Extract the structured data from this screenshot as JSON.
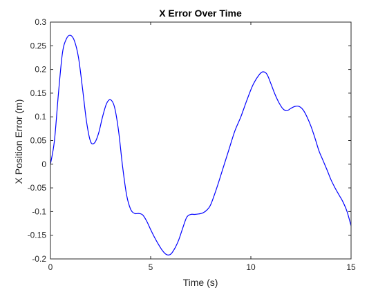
{
  "chart_data": {
    "type": "line",
    "title": "X Error Over Time",
    "xlabel": "Time (s)",
    "ylabel": "X Position Error (m)",
    "xlim": [
      0,
      15
    ],
    "ylim": [
      -0.2,
      0.3
    ],
    "xticks": [
      0,
      5,
      10,
      15
    ],
    "xtick_labels": [
      "0",
      "5",
      "10",
      "15"
    ],
    "yticks": [
      -0.2,
      -0.15,
      -0.1,
      -0.05,
      0,
      0.05,
      0.1,
      0.15,
      0.2,
      0.25,
      0.3
    ],
    "ytick_labels": [
      "-0.2",
      "-0.15",
      "-0.1",
      "-0.05",
      "0",
      "0.05",
      "0.1",
      "0.15",
      "0.2",
      "0.25",
      "0.3"
    ],
    "grid": false,
    "legend": false,
    "series": [
      {
        "color": "#0000ff",
        "x": [
          0,
          0.2,
          0.4,
          0.6,
          0.8,
          1.0,
          1.2,
          1.4,
          1.6,
          1.8,
          2.0,
          2.2,
          2.4,
          2.6,
          2.8,
          3.0,
          3.2,
          3.4,
          3.6,
          3.8,
          4.0,
          4.2,
          4.4,
          4.6,
          4.8,
          5.0,
          5.2,
          5.4,
          5.6,
          5.8,
          6.0,
          6.2,
          6.4,
          6.6,
          6.8,
          7.0,
          7.2,
          7.4,
          7.6,
          7.8,
          8.0,
          8.3,
          8.6,
          8.9,
          9.2,
          9.5,
          9.8,
          10.1,
          10.4,
          10.6,
          10.8,
          11.0,
          11.2,
          11.4,
          11.6,
          11.8,
          12.0,
          12.2,
          12.4,
          12.6,
          12.8,
          13.0,
          13.2,
          13.4,
          13.6,
          13.8,
          14.0,
          14.2,
          14.4,
          14.6,
          14.8,
          15.0
        ],
        "y": [
          0.0,
          0.05,
          0.15,
          0.235,
          0.265,
          0.272,
          0.26,
          0.225,
          0.16,
          0.09,
          0.048,
          0.045,
          0.065,
          0.1,
          0.128,
          0.136,
          0.12,
          0.07,
          -0.005,
          -0.065,
          -0.095,
          -0.104,
          -0.104,
          -0.107,
          -0.12,
          -0.138,
          -0.155,
          -0.17,
          -0.183,
          -0.191,
          -0.19,
          -0.178,
          -0.16,
          -0.135,
          -0.112,
          -0.106,
          -0.106,
          -0.105,
          -0.103,
          -0.097,
          -0.085,
          -0.05,
          -0.01,
          0.03,
          0.07,
          0.1,
          0.135,
          0.167,
          0.188,
          0.195,
          0.19,
          0.17,
          0.148,
          0.13,
          0.117,
          0.113,
          0.118,
          0.122,
          0.122,
          0.115,
          0.1,
          0.08,
          0.055,
          0.028,
          0.008,
          -0.012,
          -0.033,
          -0.05,
          -0.065,
          -0.08,
          -0.1,
          -0.13
        ]
      }
    ]
  }
}
